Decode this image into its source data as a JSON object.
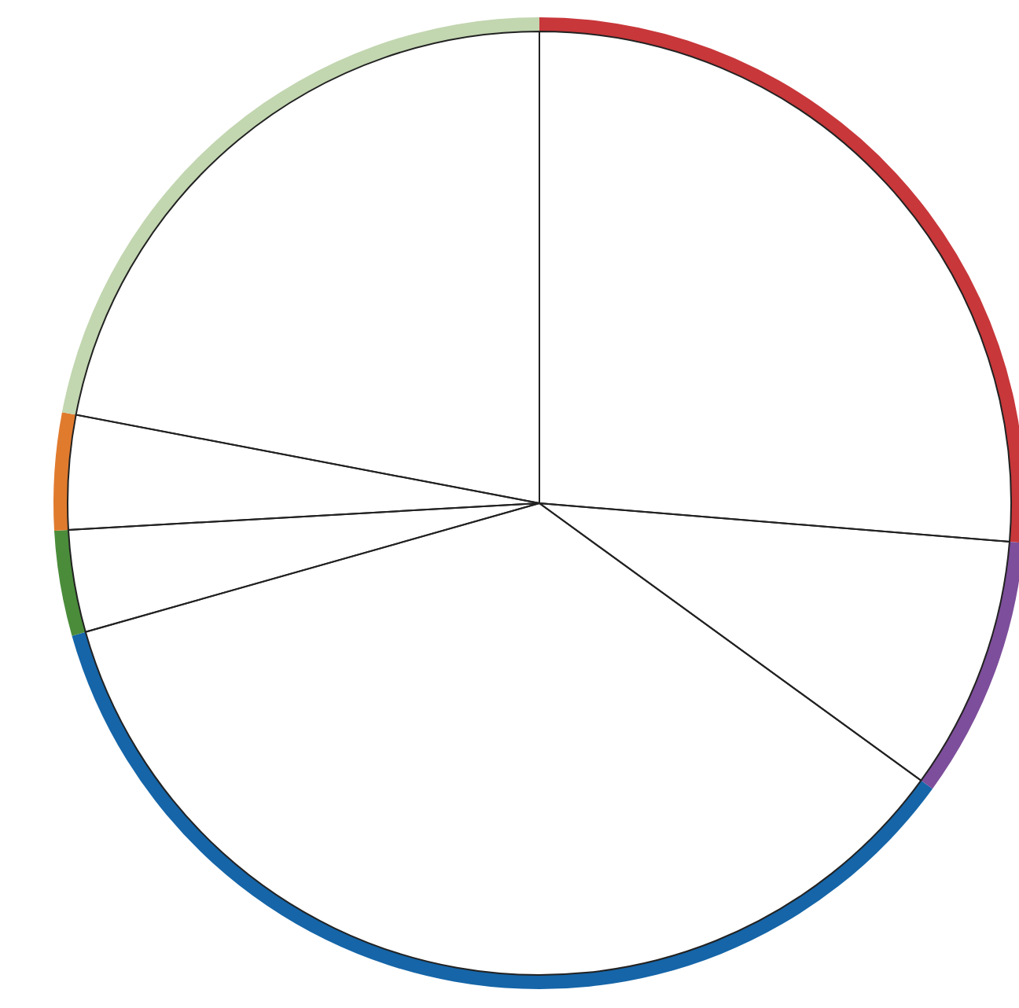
{
  "chart_data": {
    "type": "donut",
    "categories": [
      null,
      null,
      null,
      null,
      null,
      null
    ],
    "values": [
      26.3,
      8.7,
      35.6,
      3.5,
      3.9,
      22.0
    ],
    "colors": [
      "#c8373a",
      "#7d4e9b",
      "#1565a8",
      "#4a8c3a",
      "#e07b2e",
      "#c2d6b0"
    ]
  }
}
